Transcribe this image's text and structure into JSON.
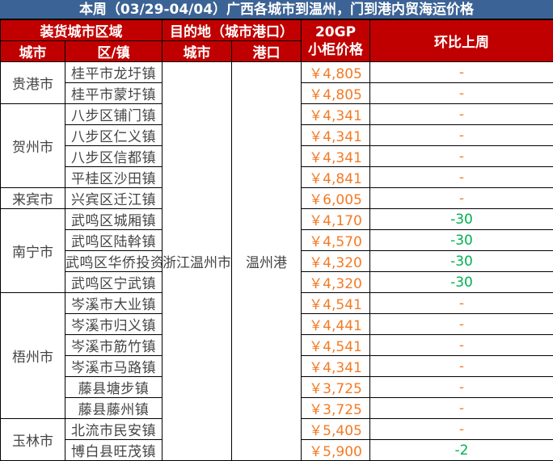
{
  "title": "本周（03/29-04/04）广西各城市到温州，门到港内贸海运价格",
  "headers": {
    "loading_region": "装货城市区域",
    "destination": "目的地（城市港口）",
    "price": "20GP\n小柜价格",
    "price_line1": "20GP",
    "price_line2": "小柜价格",
    "change": "环比上周",
    "city": "城市",
    "district": "区/镇",
    "dest_city": "城市",
    "port": "港口"
  },
  "destination": {
    "city": "浙江温州市",
    "port": "温州港"
  },
  "colors": {
    "title_bg": "#3c6395",
    "header_bg": "#c00000",
    "price": "#f47a24",
    "negative_change": "#00b050"
  },
  "groups": [
    {
      "city": "贵港市",
      "rows": [
        {
          "district": "桂平市龙圩镇",
          "price": "￥4,805",
          "change": "-"
        },
        {
          "district": "桂平市蒙圩镇",
          "price": "￥4,805",
          "change": "-"
        }
      ]
    },
    {
      "city": "贺州市",
      "rows": [
        {
          "district": "八步区铺门镇",
          "price": "￥4,341",
          "change": "-"
        },
        {
          "district": "八步区仁义镇",
          "price": "￥4,341",
          "change": "-"
        },
        {
          "district": "八步区信都镇",
          "price": "￥4,341",
          "change": "-"
        },
        {
          "district": "平桂区沙田镇",
          "price": "￥4,841",
          "change": "-"
        }
      ]
    },
    {
      "city": "来宾市",
      "rows": [
        {
          "district": "兴宾区迁江镇",
          "price": "￥6,005",
          "change": "-"
        }
      ]
    },
    {
      "city": "南宁市",
      "rows": [
        {
          "district": "武鸣区城厢镇",
          "price": "￥4,170",
          "change": "-30"
        },
        {
          "district": "武鸣区陆斡镇",
          "price": "￥4,570",
          "change": "-30"
        },
        {
          "district": "武鸣区华侨投资区",
          "price": "￥4,320",
          "change": "-30"
        },
        {
          "district": "武鸣区宁武镇",
          "price": "￥4,320",
          "change": "-30"
        }
      ]
    },
    {
      "city": "梧州市",
      "rows": [
        {
          "district": "岑溪市大业镇",
          "price": "￥4,541",
          "change": "-"
        },
        {
          "district": "岑溪市归义镇",
          "price": "￥4,441",
          "change": "-"
        },
        {
          "district": "岑溪市筋竹镇",
          "price": "￥4,541",
          "change": "-"
        },
        {
          "district": "岑溪市马路镇",
          "price": "￥4,341",
          "change": "-"
        },
        {
          "district": "藤县塘步镇",
          "price": "￥3,725",
          "change": "-"
        },
        {
          "district": "藤县藤州镇",
          "price": "￥3,725",
          "change": "-"
        }
      ]
    },
    {
      "city": "玉林市",
      "rows": [
        {
          "district": "北流市民安镇",
          "price": "￥5,405",
          "change": "-"
        },
        {
          "district": "博白县旺茂镇",
          "price": "￥5,900",
          "change": "-2"
        }
      ]
    }
  ]
}
